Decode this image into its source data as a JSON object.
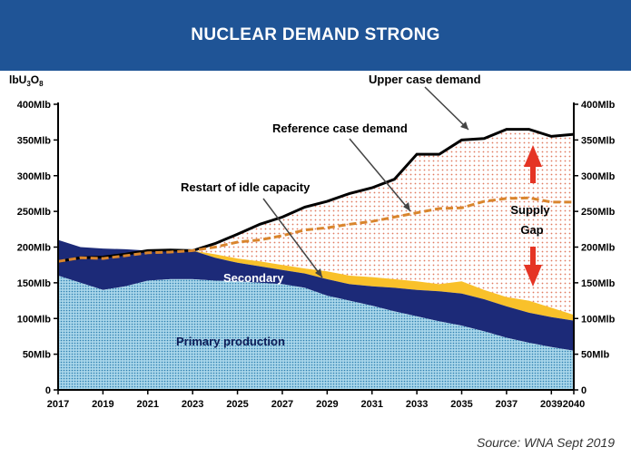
{
  "header": {
    "title": "NUCLEAR DEMAND STRONG"
  },
  "source": "Source: WNA Sept 2019",
  "colors": {
    "banner": "#1f5496",
    "primary": "#9fd0e6",
    "secondary": "#1c2a78",
    "restart": "#f9c12a",
    "gap": "#f2c8b4",
    "upper": "#000000",
    "reference": "#d9852d",
    "arrow": "#e53424"
  },
  "chart_data": {
    "type": "area",
    "title": "",
    "ylabel": {
      "main": "lbU",
      "sub1": "3",
      "mid": "O",
      "sub2": "8"
    },
    "ylim": [
      0,
      400
    ],
    "xlim": [
      2017,
      2040
    ],
    "x_ticks": [
      "2017",
      "2019",
      "2021",
      "2023",
      "2025",
      "2027",
      "2029",
      "2031",
      "2033",
      "2035",
      "2037",
      "2039",
      "2040"
    ],
    "y_ticks_left": [
      "0",
      "50Mlb",
      "100Mlb",
      "150Mlb",
      "200Mlb",
      "250Mlb",
      "300Mlb",
      "350Mlb",
      "400Mlb"
    ],
    "y_ticks_right": [
      "0",
      "50Mlb",
      "100Mlb",
      "150Mlb",
      "200Mlb",
      "250Mlb",
      "300Mlb",
      "350Mlb",
      "400Mlb"
    ],
    "x": [
      2017,
      2018,
      2019,
      2020,
      2021,
      2022,
      2023,
      2024,
      2025,
      2026,
      2027,
      2028,
      2029,
      2030,
      2031,
      2032,
      2033,
      2034,
      2035,
      2036,
      2037,
      2038,
      2039,
      2040
    ],
    "series": [
      {
        "name": "Primary production",
        "role": "primary",
        "values": [
          160,
          150,
          140,
          145,
          153,
          155,
          155,
          153,
          152,
          150,
          148,
          143,
          132,
          125,
          118,
          110,
          103,
          96,
          90,
          82,
          73,
          66,
          60,
          55
        ]
      },
      {
        "name": "Secondary",
        "role": "secondary",
        "values": [
          210,
          200,
          198,
          197,
          195,
          197,
          195,
          185,
          178,
          173,
          168,
          163,
          155,
          148,
          145,
          143,
          140,
          138,
          135,
          127,
          117,
          108,
          102,
          97
        ]
      },
      {
        "name": "Restart of idle capacity",
        "role": "restart",
        "values": [
          210,
          200,
          198,
          197,
          195,
          197,
          195,
          190,
          184,
          180,
          175,
          170,
          166,
          160,
          158,
          155,
          152,
          148,
          152,
          140,
          130,
          125,
          115,
          105
        ]
      },
      {
        "name": "Upper case demand",
        "role": "upper",
        "values": [
          180,
          185,
          186,
          190,
          195,
          196,
          195,
          205,
          218,
          232,
          242,
          256,
          264,
          275,
          283,
          295,
          330,
          330,
          350,
          352,
          365,
          365,
          355,
          358
        ]
      },
      {
        "name": "Reference case demand",
        "role": "reference",
        "values": [
          180,
          185,
          184,
          188,
          192,
          193,
          195,
          200,
          207,
          210,
          216,
          224,
          227,
          232,
          236,
          242,
          248,
          254,
          255,
          264,
          268,
          269,
          263,
          263
        ]
      }
    ],
    "annotations": [
      {
        "text": "Upper case demand",
        "role": "upper-label"
      },
      {
        "text": "Reference case demand",
        "role": "reference-label"
      },
      {
        "text": "Restart of idle capacity",
        "role": "restart-label"
      },
      {
        "text": "Secondary",
        "role": "secondary-label"
      },
      {
        "text": "Primary production",
        "role": "primary-label"
      },
      {
        "text": "Supply",
        "role": "gap-label-1"
      },
      {
        "text": "Gap",
        "role": "gap-label-2"
      }
    ],
    "grid": false,
    "legend": "none"
  }
}
